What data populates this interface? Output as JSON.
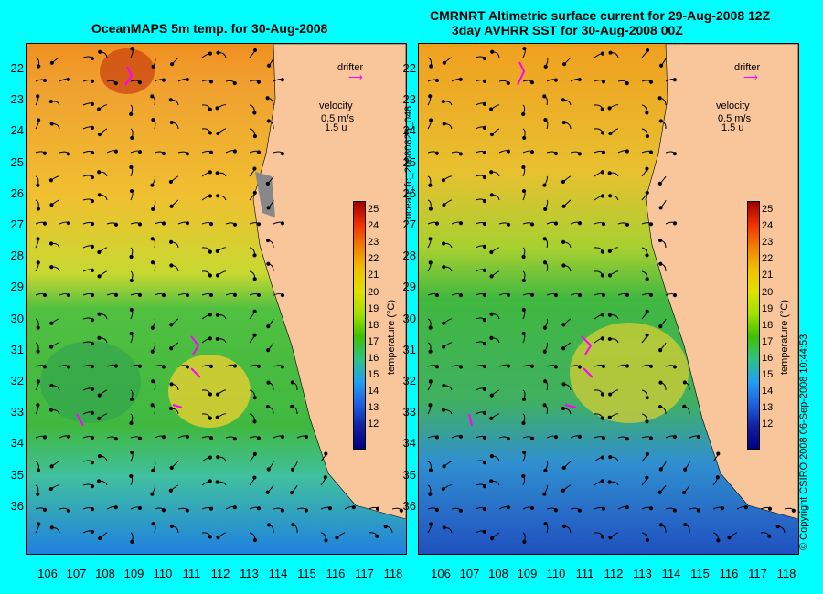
{
  "left_title": "OceanMAPS 5m temp. for 30-Aug-2008",
  "right_title_line1": "CMRNRT Altimetric surface current for 29-Aug-2008 12Z",
  "right_title_line2": "3day AVHRR SST for 30-Aug-2008 00Z",
  "drifter_label": "drifter",
  "velocity_label": "velocity",
  "velocity_scale": "0.5 m/s",
  "velocity_scale2": "1.5 u",
  "colorbar_label": "temperature (°C)",
  "colorbar_ticks": [
    "25",
    "24",
    "23",
    "22",
    "21",
    "20",
    "19",
    "18",
    "17",
    "16",
    "15",
    "14",
    "13",
    "12"
  ],
  "lat_ticks": [
    "22",
    "23",
    "24",
    "25",
    "26",
    "27",
    "28",
    "29",
    "30",
    "31",
    "32",
    "33",
    "34",
    "35",
    "36"
  ],
  "lon_ticks": [
    "106",
    "107",
    "108",
    "109",
    "110",
    "111",
    "112",
    "113",
    "114",
    "115",
    "116",
    "117",
    "118"
  ],
  "file_id": "ocean_fc_20080828_048",
  "copyright": "© Copyright CSIRO 2008   06-Sep-2008 10:44:53",
  "colors": {
    "background": "#00ffff",
    "land": "#f9c59b",
    "warm": "#f0a020",
    "cool": "#40c040",
    "cold": "#3090e0",
    "arrow": "#000000",
    "drifter": "#ff00ff",
    "contour": "#60e0e0"
  }
}
